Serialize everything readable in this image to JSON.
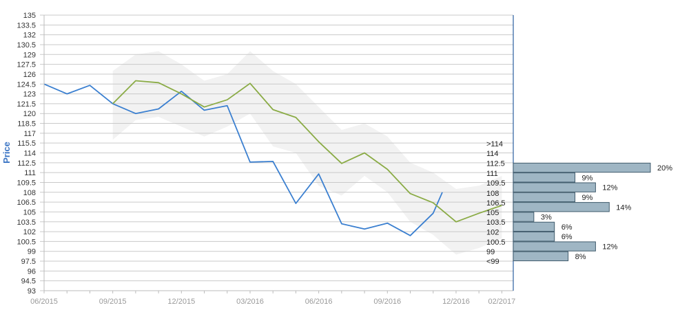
{
  "chart_data": {
    "type": "line",
    "ylabel": "Price",
    "xlabel": "",
    "ylim": [
      93,
      135
    ],
    "yticks": [
      "135",
      "133.5",
      "132",
      "130.5",
      "129",
      "127.5",
      "126",
      "124.5",
      "123",
      "121.5",
      "120",
      "118.5",
      "117",
      "115.5",
      "114",
      "112.5",
      "111",
      "109.5",
      "108",
      "106.5",
      "105",
      "103.5",
      "102",
      "100.5",
      "99",
      "97.5",
      "96",
      "94.5",
      "93"
    ],
    "xticks": [
      "06/2015",
      "09/2015",
      "12/2015",
      "03/2016",
      "06/2016",
      "09/2016",
      "12/2016",
      "02/2017"
    ],
    "grid": true,
    "colors": {
      "price": "#3a7fd0",
      "estimate": "#8aab45",
      "band": "#f2f2f2",
      "bars": "#9fb6c4",
      "bar_border": "#3f5a6b",
      "axis": "#2a5d9f",
      "grid": "#c9c9c9"
    },
    "series": [
      {
        "values": [
          [
            "06/2015",
            124.5
          ],
          [
            "07/2015",
            123.0
          ],
          [
            "08/2015",
            124.3
          ],
          [
            "09/2015",
            121.5
          ],
          [
            "10/2015",
            120.0
          ],
          [
            "11/2015",
            120.7
          ],
          [
            "12/2015",
            123.4
          ],
          [
            "01/2016",
            120.5
          ],
          [
            "02/2016",
            121.2
          ],
          [
            "03/2016",
            112.6
          ],
          [
            "04/2016",
            112.7
          ],
          [
            "05/2016",
            106.3
          ],
          [
            "06/2016",
            110.8
          ],
          [
            "07/2016",
            103.2
          ],
          [
            "08/2016",
            102.4
          ],
          [
            "09/2016",
            103.3
          ],
          [
            "10/2016",
            101.4
          ],
          [
            "11/2016",
            104.8
          ],
          [
            "11/2016+",
            108.0
          ]
        ]
      },
      {
        "values": [
          [
            "09/2015",
            121.5
          ],
          [
            "10/2015",
            125.0
          ],
          [
            "11/2015",
            124.7
          ],
          [
            "12/2015",
            123.0
          ],
          [
            "01/2016",
            121.0
          ],
          [
            "02/2016",
            122.1
          ],
          [
            "03/2016",
            124.6
          ],
          [
            "04/2016",
            120.6
          ],
          [
            "05/2016",
            119.4
          ],
          [
            "06/2016",
            115.7
          ],
          [
            "07/2016",
            112.4
          ],
          [
            "08/2016",
            114.0
          ],
          [
            "09/2016",
            111.5
          ],
          [
            "10/2016",
            107.8
          ],
          [
            "11/2016",
            106.4
          ],
          [
            "12/2016",
            103.5
          ],
          [
            "01/2017",
            104.8
          ],
          [
            "02/2017",
            106.0
          ]
        ]
      }
    ],
    "band": {
      "upper": [
        126.5,
        129.0,
        129.5,
        127.5,
        125.0,
        126.0,
        129.5,
        126.5,
        124.5,
        121.0,
        117.5,
        118.5,
        116.5,
        112.5,
        111.0,
        108.5,
        109.0,
        110.5
      ],
      "lower": [
        116.0,
        119.0,
        119.5,
        118.0,
        116.5,
        118.0,
        120.0,
        115.0,
        114.0,
        109.0,
        107.5,
        110.5,
        108.0,
        103.5,
        101.5,
        98.5,
        99.5,
        101.0
      ]
    },
    "distribution": {
      "bins": [
        ">114",
        "114",
        "112.5",
        "111",
        "109.5",
        "108",
        "106.5",
        "105",
        "103.5",
        "102",
        "100.5",
        "99",
        "<99"
      ],
      "bars": [
        {
          "from": 112.5,
          "to": 111,
          "percent": 20,
          "label": "20%"
        },
        {
          "from": 111,
          "to": 109.5,
          "percent": 9,
          "label": "9%"
        },
        {
          "from": 109.5,
          "to": 108,
          "percent": 12,
          "label": "12%"
        },
        {
          "from": 108,
          "to": 106.5,
          "percent": 9,
          "label": "9%"
        },
        {
          "from": 106.5,
          "to": 105,
          "percent": 14,
          "label": "14%"
        },
        {
          "from": 105,
          "to": 103.5,
          "percent": 3,
          "label": "3%"
        },
        {
          "from": 103.5,
          "to": 102,
          "percent": 6,
          "label": "6%"
        },
        {
          "from": 102,
          "to": 100.5,
          "percent": 6,
          "label": "6%"
        },
        {
          "from": 100.5,
          "to": 99,
          "percent": 12,
          "label": "12%"
        },
        {
          "from": 99,
          "to": 97.5,
          "percent": 8,
          "label": "8%"
        }
      ]
    }
  }
}
